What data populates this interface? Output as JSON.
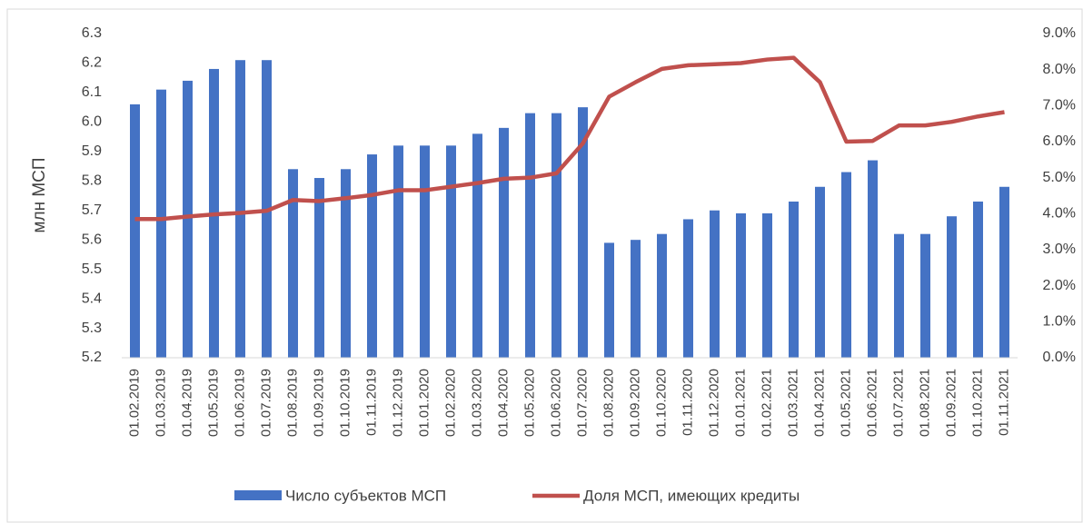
{
  "chart_data": {
    "type": "bar+line",
    "y_axis_label": "млн МСП",
    "categories": [
      "01.02.2019",
      "01.03.2019",
      "01.04.2019",
      "01.05.2019",
      "01.06.2019",
      "01.07.2019",
      "01.08.2019",
      "01.09.2019",
      "01.10.2019",
      "01.11.2019",
      "01.12.2019",
      "01.01.2020",
      "01.02.2020",
      "01.03.2020",
      "01.04.2020",
      "01.05.2020",
      "01.06.2020",
      "01.07.2020",
      "01.08.2020",
      "01.09.2020",
      "01.10.2020",
      "01.11.2020",
      "01.12.2020",
      "01.01.2021",
      "01.02.2021",
      "01.03.2021",
      "01.04.2021",
      "01.05.2021",
      "01.06.2021",
      "01.07.2021",
      "01.08.2021",
      "01.09.2021",
      "01.10.2021",
      "01.11.2021"
    ],
    "series": [
      {
        "name": "Число субъектов МСП",
        "type": "bar",
        "color": "#4472c4",
        "axis": "y",
        "values": [
          6.06,
          6.11,
          6.14,
          6.18,
          6.21,
          6.21,
          5.84,
          5.81,
          5.84,
          5.89,
          5.92,
          5.92,
          5.92,
          5.96,
          5.98,
          6.03,
          6.03,
          6.05,
          5.59,
          5.6,
          5.62,
          5.67,
          5.7,
          5.69,
          5.69,
          5.73,
          5.78,
          5.83,
          5.87,
          5.62,
          5.62,
          5.68,
          5.73,
          5.78
        ]
      },
      {
        "name": "Доля МСП, имеющих кредиты",
        "type": "line",
        "color": "#c0504d",
        "axis": "y2",
        "values": [
          3.85,
          3.85,
          3.92,
          3.98,
          4.02,
          4.08,
          4.38,
          4.35,
          4.43,
          4.52,
          4.65,
          4.65,
          4.75,
          4.85,
          4.97,
          5.0,
          5.12,
          5.95,
          7.25,
          7.65,
          8.02,
          8.12,
          8.15,
          8.18,
          8.28,
          8.33,
          7.65,
          6.0,
          6.02,
          6.45,
          6.45,
          6.55,
          6.7,
          6.82
        ]
      }
    ],
    "ylim": [
      5.2,
      6.3
    ],
    "yticks": [
      5.2,
      5.3,
      5.4,
      5.5,
      5.6,
      5.7,
      5.8,
      5.9,
      {
        "value": 6,
        "label": "6.0"
      },
      6.1,
      6.2,
      6.3
    ],
    "y2lim": [
      0,
      9
    ],
    "y2ticks": [
      {
        "value": 0,
        "label": "0.0%"
      },
      {
        "value": 1,
        "label": "1.0%"
      },
      {
        "value": 2,
        "label": "2.0%"
      },
      {
        "value": 3,
        "label": "3.0%"
      },
      {
        "value": 4,
        "label": "4.0%"
      },
      {
        "value": 5,
        "label": "5.0%"
      },
      {
        "value": 6,
        "label": "6.0%"
      },
      {
        "value": 7,
        "label": "7.0%"
      },
      {
        "value": 8,
        "label": "8.0%"
      },
      {
        "value": 9,
        "label": "9.0%"
      }
    ],
    "legend": "bottom",
    "grid": false
  }
}
